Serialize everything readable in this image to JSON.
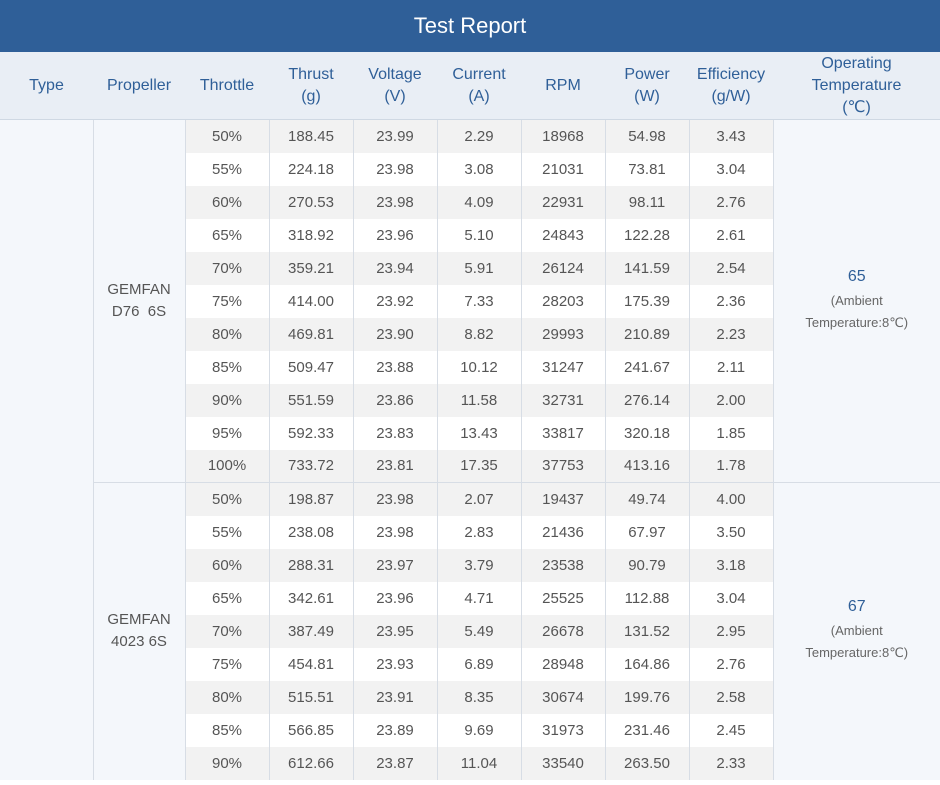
{
  "title": "Test Report",
  "columns": {
    "type": "Type",
    "propeller": "Propeller",
    "throttle": "Throttle",
    "thrust": "Thrust",
    "thrust_unit": "(g)",
    "voltage": "Voltage",
    "voltage_unit": "(V)",
    "current": "Current",
    "current_unit": "(A)",
    "rpm": "RPM",
    "power": "Power",
    "power_unit": "(W)",
    "efficiency": "Efficiency",
    "efficiency_unit": "(g/W)",
    "temp_line1": "Operating",
    "temp_line2": "Temperature",
    "temp_unit": "(℃)"
  },
  "groups": [
    {
      "propeller_line1": "GEMFAN",
      "propeller_line2": "D76  6S",
      "temperature": "65",
      "ambient_line1": "(Ambient",
      "ambient_line2": "Temperature:8℃)",
      "rows": [
        [
          "50%",
          "188.45",
          "23.99",
          "2.29",
          "18968",
          "54.98",
          "3.43"
        ],
        [
          "55%",
          "224.18",
          "23.98",
          "3.08",
          "21031",
          "73.81",
          "3.04"
        ],
        [
          "60%",
          "270.53",
          "23.98",
          "4.09",
          "22931",
          "98.11",
          "2.76"
        ],
        [
          "65%",
          "318.92",
          "23.96",
          "5.10",
          "24843",
          "122.28",
          "2.61"
        ],
        [
          "70%",
          "359.21",
          "23.94",
          "5.91",
          "26124",
          "141.59",
          "2.54"
        ],
        [
          "75%",
          "414.00",
          "23.92",
          "7.33",
          "28203",
          "175.39",
          "2.36"
        ],
        [
          "80%",
          "469.81",
          "23.90",
          "8.82",
          "29993",
          "210.89",
          "2.23"
        ],
        [
          "85%",
          "509.47",
          "23.88",
          "10.12",
          "31247",
          "241.67",
          "2.11"
        ],
        [
          "90%",
          "551.59",
          "23.86",
          "11.58",
          "32731",
          "276.14",
          "2.00"
        ],
        [
          "95%",
          "592.33",
          "23.83",
          "13.43",
          "33817",
          "320.18",
          "1.85"
        ],
        [
          "100%",
          "733.72",
          "23.81",
          "17.35",
          "37753",
          "413.16",
          "1.78"
        ]
      ]
    },
    {
      "propeller_line1": "GEMFAN",
      "propeller_line2": "4023 6S",
      "temperature": "67",
      "ambient_line1": "(Ambient",
      "ambient_line2": "Temperature:8℃)",
      "rows": [
        [
          "50%",
          "198.87",
          "23.98",
          "2.07",
          "19437",
          "49.74",
          "4.00"
        ],
        [
          "55%",
          "238.08",
          "23.98",
          "2.83",
          "21436",
          "67.97",
          "3.50"
        ],
        [
          "60%",
          "288.31",
          "23.97",
          "3.79",
          "23538",
          "90.79",
          "3.18"
        ],
        [
          "65%",
          "342.61",
          "23.96",
          "4.71",
          "25525",
          "112.88",
          "3.04"
        ],
        [
          "70%",
          "387.49",
          "23.95",
          "5.49",
          "26678",
          "131.52",
          "2.95"
        ],
        [
          "75%",
          "454.81",
          "23.93",
          "6.89",
          "28948",
          "164.86",
          "2.76"
        ],
        [
          "80%",
          "515.51",
          "23.91",
          "8.35",
          "30674",
          "199.76",
          "2.58"
        ],
        [
          "85%",
          "566.85",
          "23.89",
          "9.69",
          "31973",
          "231.46",
          "2.45"
        ],
        [
          "90%",
          "612.66",
          "23.87",
          "11.04",
          "33540",
          "263.50",
          "2.33"
        ]
      ]
    }
  ]
}
